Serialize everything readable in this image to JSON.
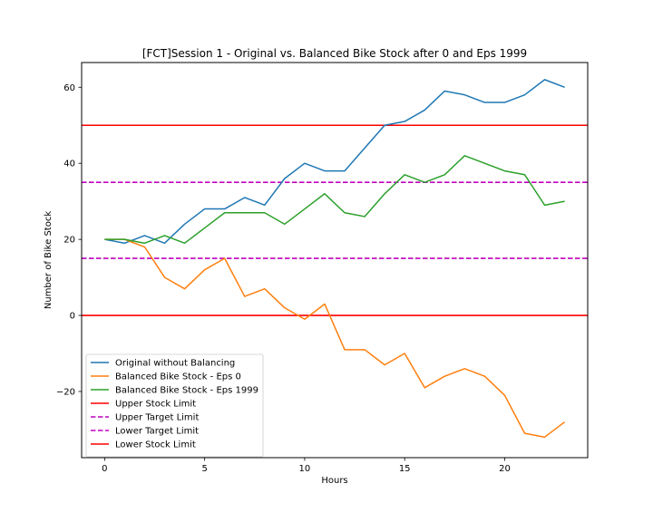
{
  "chart_data": {
    "type": "line",
    "title": "[FCT]Session 1 - Original vs. Balanced Bike Stock after 0 and Eps 1999",
    "xlabel": "Hours",
    "ylabel": "Number of Bike Stock",
    "xlim": [
      -1.15,
      24.15
    ],
    "ylim": [
      -37.4,
      66.5
    ],
    "xticks": [
      0,
      5,
      10,
      15,
      20
    ],
    "yticks": [
      -20,
      0,
      20,
      40,
      60
    ],
    "ytick_labels": [
      "−20",
      "0",
      "20",
      "40",
      "60"
    ],
    "grid": false,
    "legend_position": "lower-left",
    "x": [
      0,
      1,
      2,
      3,
      4,
      5,
      6,
      7,
      8,
      9,
      10,
      11,
      12,
      13,
      14,
      15,
      16,
      17,
      18,
      19,
      20,
      21,
      22,
      23
    ],
    "series": [
      {
        "name": "Original without Balancing",
        "color": "#1f77b4",
        "values": [
          20,
          19,
          21,
          19,
          24,
          28,
          28,
          31,
          29,
          36,
          40,
          38,
          38,
          44,
          50,
          51,
          54,
          59,
          58,
          56,
          56,
          58,
          62,
          60
        ]
      },
      {
        "name": "Balanced Bike Stock - Eps 0",
        "color": "#ff7f0e",
        "values": [
          20,
          20,
          18,
          10,
          7,
          12,
          15,
          5,
          7,
          2,
          -1,
          3,
          -9,
          -9,
          -13,
          -10,
          -19,
          -16,
          -14,
          -16,
          -21,
          -31,
          -32,
          -28
        ]
      },
      {
        "name": "Balanced Bike Stock - Eps 1999",
        "color": "#2ca02c",
        "values": [
          20,
          20,
          19,
          21,
          19,
          23,
          27,
          27,
          27,
          24,
          28,
          32,
          27,
          26,
          32,
          37,
          35,
          37,
          42,
          40,
          38,
          37,
          29,
          30
        ]
      }
    ],
    "hlines": [
      {
        "name": "Upper Stock Limit",
        "y": 50,
        "color": "#ff0000",
        "style": "solid"
      },
      {
        "name": "Upper Target Limit",
        "y": 35,
        "color": "#bf00bf",
        "style": "dashed"
      },
      {
        "name": "Lower Target Limit",
        "y": 15,
        "color": "#bf00bf",
        "style": "dashed"
      },
      {
        "name": "Lower Stock Limit",
        "y": 0,
        "color": "#ff0000",
        "style": "solid"
      }
    ]
  }
}
